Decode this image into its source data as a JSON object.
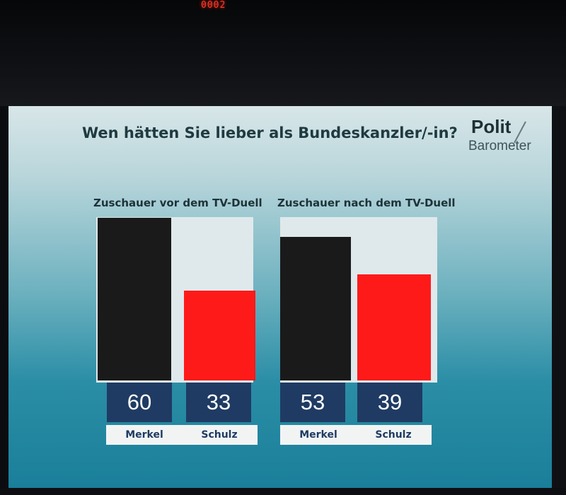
{
  "led_counter": "0002",
  "chart_data": {
    "type": "bar",
    "title": "Wen hätten Sie lieber als Bundeskanzler/-in?",
    "ylim": [
      0,
      60
    ],
    "grid": false,
    "legend": "none",
    "panels": [
      {
        "heading": "Zuschauer vor dem TV-Duell",
        "categories": [
          "Merkel",
          "Schulz"
        ],
        "values": [
          60,
          33
        ],
        "colors": [
          "#1a1a1a",
          "#ff1a1a"
        ]
      },
      {
        "heading": "Zuschauer nach dem TV-Duell",
        "categories": [
          "Merkel",
          "Schulz"
        ],
        "values": [
          53,
          39
        ],
        "colors": [
          "#1a1a1a",
          "#ff1a1a"
        ]
      }
    ]
  },
  "logo": {
    "top": "Polit",
    "bottom": "Barometer"
  },
  "colors": {
    "value_box": "#1f3b63",
    "label_box": "#f2f4f4"
  }
}
